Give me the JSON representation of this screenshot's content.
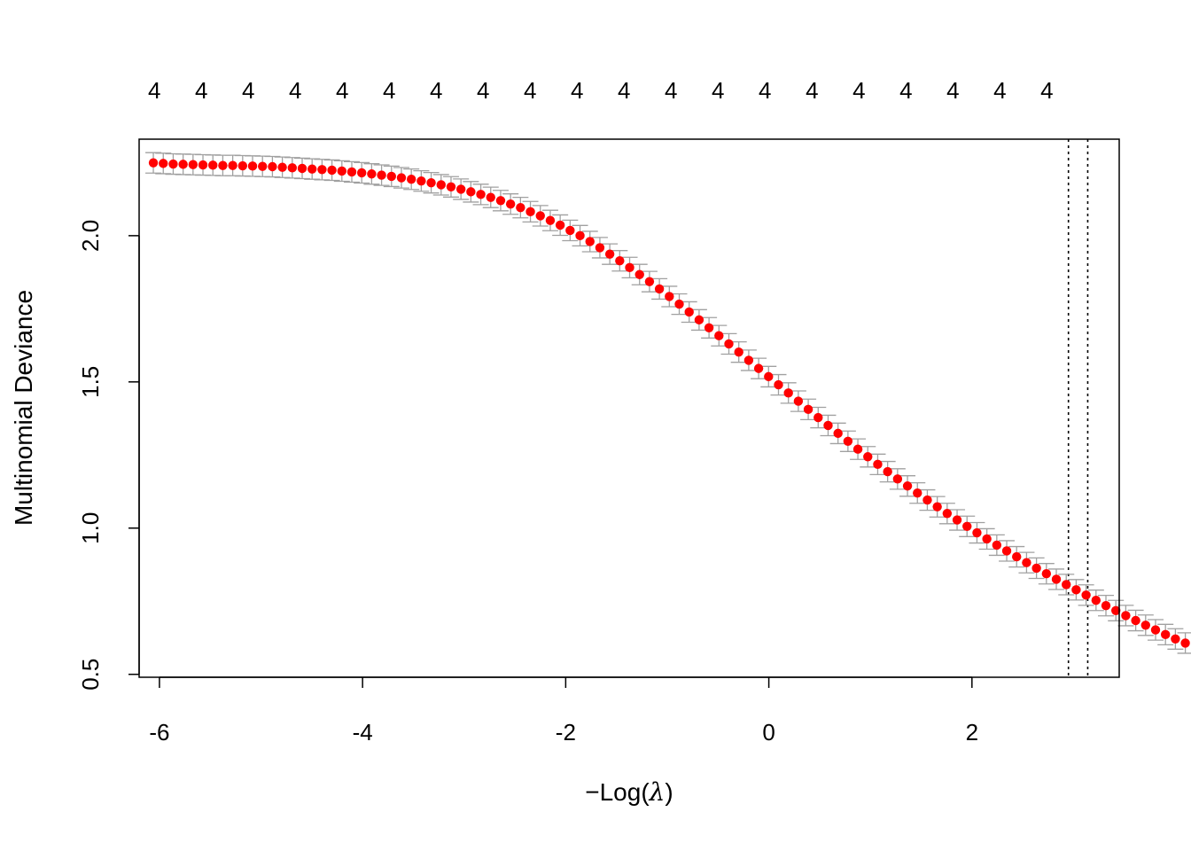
{
  "chart_data": {
    "type": "scatter",
    "title": "",
    "xlabel": "-Log(λ)",
    "xlabel_parts": {
      "minus": "−",
      "func": "Log(",
      "lambda": "λ",
      "close": ")"
    },
    "ylabel": "Multinomial Deviance",
    "xlim": [
      -6.2,
      3.45
    ],
    "ylim": [
      0.49,
      2.33
    ],
    "xticks": [
      -6,
      -4,
      -2,
      0,
      2
    ],
    "xtick_labels": [
      "-6",
      "-4",
      "-2",
      "0",
      "2"
    ],
    "yticks": [
      0.5,
      1.0,
      1.5,
      2.0
    ],
    "ytick_labels": [
      "0.5",
      "1.0",
      "1.5",
      "2.0"
    ],
    "top_labels": [
      "4",
      "4",
      "4",
      "4",
      "4",
      "4",
      "4",
      "4",
      "4",
      "4",
      "4",
      "4",
      "4",
      "4",
      "4",
      "4",
      "4",
      "4",
      "4",
      "4"
    ],
    "top_label_x_start": -6.05,
    "top_label_x_step": 0.4625,
    "vlines": [
      2.95,
      3.14
    ],
    "point_color": "#ff0000",
    "errorbar_color": "#a0a0a0",
    "series": [
      {
        "x_start": -6.06,
        "x_step": 0.0977,
        "y": [
          2.249,
          2.247,
          2.245,
          2.244,
          2.243,
          2.242,
          2.241,
          2.24,
          2.24,
          2.239,
          2.238,
          2.237,
          2.236,
          2.234,
          2.232,
          2.23,
          2.228,
          2.226,
          2.224,
          2.221,
          2.218,
          2.215,
          2.211,
          2.207,
          2.203,
          2.198,
          2.193,
          2.187,
          2.181,
          2.174,
          2.167,
          2.159,
          2.15,
          2.141,
          2.131,
          2.12,
          2.108,
          2.096,
          2.082,
          2.068,
          2.052,
          2.036,
          2.018,
          2.0,
          1.98,
          1.959,
          1.937,
          1.914,
          1.891,
          1.867,
          1.843,
          1.818,
          1.792,
          1.766,
          1.739,
          1.712,
          1.685,
          1.658,
          1.63,
          1.602,
          1.574,
          1.546,
          1.518,
          1.49,
          1.462,
          1.434,
          1.406,
          1.378,
          1.351,
          1.324,
          1.297,
          1.27,
          1.244,
          1.218,
          1.193,
          1.168,
          1.144,
          1.12,
          1.096,
          1.073,
          1.05,
          1.028,
          1.006,
          0.984,
          0.963,
          0.942,
          0.922,
          0.902,
          0.882,
          0.863,
          0.844,
          0.825,
          0.807,
          0.789,
          0.771,
          0.753,
          0.735,
          0.718,
          0.701,
          0.684,
          0.668,
          0.652,
          0.636,
          0.621,
          0.607
        ],
        "se": 0.035
      }
    ]
  }
}
